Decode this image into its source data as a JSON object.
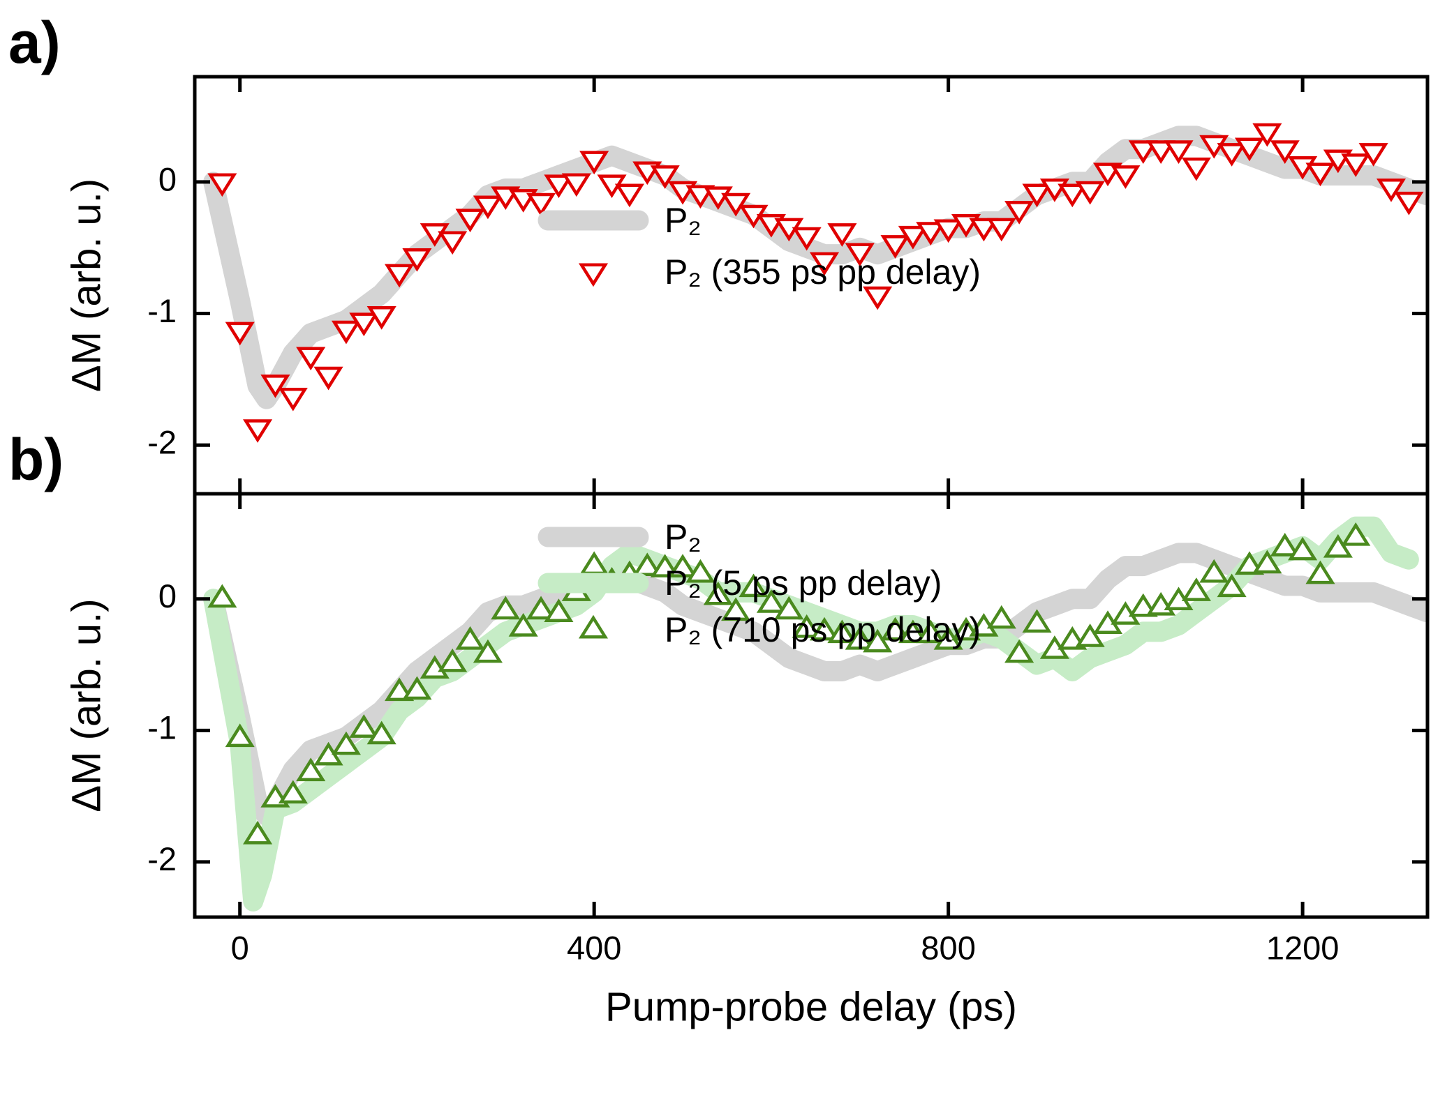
{
  "chart_data": [
    {
      "type": "line",
      "panel_label": "a)",
      "ylabel": "ΔM (arb. u.)",
      "xlim": [
        -51,
        1341
      ],
      "ylim": [
        -2.37,
        0.8
      ],
      "xticks": [
        0,
        400,
        800,
        1200
      ],
      "yticks": [
        -2,
        -1,
        0
      ],
      "series": [
        {
          "name": "P₂",
          "mode": "band",
          "color": "#d4d4d4",
          "x": [
            -30,
            0,
            20,
            30,
            40,
            60,
            80,
            100,
            120,
            140,
            160,
            180,
            200,
            220,
            240,
            260,
            280,
            300,
            320,
            340,
            360,
            380,
            400,
            420,
            440,
            460,
            480,
            500,
            520,
            540,
            560,
            580,
            600,
            620,
            640,
            660,
            680,
            700,
            720,
            740,
            760,
            780,
            800,
            820,
            840,
            860,
            880,
            900,
            920,
            940,
            960,
            980,
            1000,
            1020,
            1040,
            1060,
            1080,
            1100,
            1120,
            1140,
            1160,
            1180,
            1200,
            1220,
            1240,
            1260,
            1280,
            1300,
            1320,
            1340
          ],
          "values": [
            0,
            -0.9,
            -1.55,
            -1.65,
            -1.55,
            -1.3,
            -1.15,
            -1.1,
            -1.05,
            -0.95,
            -0.85,
            -0.7,
            -0.55,
            -0.45,
            -0.35,
            -0.25,
            -0.1,
            -0.05,
            -0.05,
            0,
            0.05,
            0.1,
            0.15,
            0.2,
            0.15,
            0.1,
            0.05,
            -0.05,
            -0.1,
            -0.15,
            -0.2,
            -0.25,
            -0.35,
            -0.45,
            -0.5,
            -0.55,
            -0.55,
            -0.5,
            -0.55,
            -0.5,
            -0.45,
            -0.4,
            -0.35,
            -0.35,
            -0.3,
            -0.3,
            -0.2,
            -0.1,
            -0.05,
            0,
            0,
            0.15,
            0.25,
            0.25,
            0.3,
            0.35,
            0.35,
            0.3,
            0.25,
            0.2,
            0.15,
            0.1,
            0.1,
            0.05,
            0.05,
            0.05,
            0.05,
            0,
            -0.05,
            -0.1
          ]
        },
        {
          "name": "P₂ (355 ps pp delay)",
          "mode": "triangle-down",
          "color": "#e00000",
          "x": [
            -20,
            0,
            20,
            40,
            60,
            80,
            100,
            120,
            140,
            160,
            180,
            200,
            220,
            240,
            260,
            280,
            300,
            320,
            340,
            360,
            380,
            400,
            420,
            440,
            460,
            480,
            500,
            520,
            540,
            560,
            580,
            600,
            620,
            640,
            660,
            680,
            700,
            720,
            740,
            760,
            780,
            800,
            820,
            840,
            860,
            880,
            900,
            920,
            940,
            960,
            980,
            1000,
            1020,
            1040,
            1060,
            1080,
            1100,
            1120,
            1140,
            1160,
            1180,
            1200,
            1220,
            1240,
            1260,
            1280,
            1300,
            1320
          ],
          "values": [
            0,
            -1.13,
            -1.87,
            -1.53,
            -1.63,
            -1.32,
            -1.47,
            -1.12,
            -1.06,
            -1.01,
            -0.69,
            -0.57,
            -0.38,
            -0.44,
            -0.27,
            -0.17,
            -0.1,
            -0.12,
            -0.15,
            -0.01,
            0,
            0.17,
            -0.01,
            -0.08,
            0.09,
            0.06,
            -0.06,
            -0.09,
            -0.1,
            -0.15,
            -0.24,
            -0.31,
            -0.34,
            -0.41,
            -0.6,
            -0.38,
            -0.53,
            -0.86,
            -0.47,
            -0.4,
            -0.37,
            -0.35,
            -0.31,
            -0.34,
            -0.34,
            -0.21,
            -0.08,
            -0.04,
            -0.08,
            -0.06,
            0.08,
            0.06,
            0.25,
            0.25,
            0.25,
            0.12,
            0.29,
            0.23,
            0.27,
            0.38,
            0.25,
            0.13,
            0.08,
            0.18,
            0.15,
            0.23,
            -0.04,
            -0.14
          ]
        }
      ]
    },
    {
      "type": "line",
      "panel_label": "b)",
      "ylabel": "ΔM (arb. u.)",
      "xlabel": "Pump-probe delay (ps)",
      "xlim": [
        -51,
        1341
      ],
      "ylim": [
        -2.42,
        0.8
      ],
      "xticks": [
        0,
        400,
        800,
        1200
      ],
      "yticks": [
        -2,
        -1,
        0
      ],
      "series": [
        {
          "name": "P₂",
          "mode": "band",
          "color": "#d4d4d4",
          "x": [
            -30,
            0,
            20,
            30,
            40,
            60,
            80,
            100,
            120,
            140,
            160,
            180,
            200,
            220,
            240,
            260,
            280,
            300,
            320,
            340,
            360,
            380,
            400,
            420,
            440,
            460,
            480,
            500,
            520,
            540,
            560,
            580,
            600,
            620,
            640,
            660,
            680,
            700,
            720,
            740,
            760,
            780,
            800,
            820,
            840,
            860,
            880,
            900,
            920,
            940,
            960,
            980,
            1000,
            1020,
            1040,
            1060,
            1080,
            1100,
            1120,
            1140,
            1160,
            1180,
            1200,
            1220,
            1240,
            1260,
            1280,
            1300,
            1320,
            1340
          ],
          "values": [
            0,
            -0.9,
            -1.55,
            -1.65,
            -1.55,
            -1.3,
            -1.15,
            -1.1,
            -1.05,
            -0.95,
            -0.85,
            -0.7,
            -0.55,
            -0.45,
            -0.35,
            -0.25,
            -0.1,
            -0.05,
            -0.05,
            0,
            0.05,
            0.1,
            0.15,
            0.2,
            0.15,
            0.1,
            0.05,
            -0.05,
            -0.1,
            -0.15,
            -0.2,
            -0.25,
            -0.35,
            -0.45,
            -0.5,
            -0.55,
            -0.55,
            -0.5,
            -0.55,
            -0.5,
            -0.45,
            -0.4,
            -0.35,
            -0.35,
            -0.3,
            -0.3,
            -0.2,
            -0.1,
            -0.05,
            0,
            0,
            0.15,
            0.25,
            0.25,
            0.3,
            0.35,
            0.35,
            0.3,
            0.25,
            0.2,
            0.15,
            0.1,
            0.1,
            0.05,
            0.05,
            0.05,
            0.05,
            0,
            -0.05,
            -0.1
          ]
        },
        {
          "name": "P₂ (5 ps pp delay)",
          "mode": "band",
          "color": "#c6ecc6",
          "x": [
            -30,
            0,
            15,
            25,
            40,
            60,
            80,
            100,
            120,
            140,
            160,
            180,
            200,
            220,
            240,
            260,
            280,
            300,
            320,
            340,
            360,
            380,
            400,
            420,
            440,
            460,
            480,
            500,
            520,
            540,
            560,
            580,
            600,
            620,
            640,
            660,
            680,
            700,
            720,
            740,
            760,
            780,
            800,
            820,
            840,
            860,
            880,
            900,
            920,
            940,
            960,
            980,
            1000,
            1020,
            1040,
            1060,
            1080,
            1100,
            1120,
            1140,
            1160,
            1180,
            1200,
            1220,
            1240,
            1260,
            1280,
            1300,
            1320
          ],
          "values": [
            0,
            -1.1,
            -2.3,
            -2.1,
            -1.6,
            -1.55,
            -1.45,
            -1.35,
            -1.25,
            -1.15,
            -1.05,
            -0.85,
            -0.75,
            -0.6,
            -0.55,
            -0.45,
            -0.35,
            -0.25,
            -0.2,
            -0.15,
            -0.1,
            -0.05,
            0.05,
            0.25,
            0.35,
            0.3,
            0.25,
            0.2,
            0.15,
            0.05,
            0.05,
            0.05,
            0,
            -0.05,
            -0.1,
            -0.15,
            -0.2,
            -0.25,
            -0.25,
            -0.2,
            -0.2,
            -0.25,
            -0.3,
            -0.3,
            -0.25,
            -0.3,
            -0.4,
            -0.5,
            -0.45,
            -0.55,
            -0.45,
            -0.4,
            -0.35,
            -0.25,
            -0.25,
            -0.2,
            -0.1,
            0,
            0.1,
            0.25,
            0.3,
            0.35,
            0.4,
            0.3,
            0.45,
            0.55,
            0.55,
            0.35,
            0.3
          ]
        },
        {
          "name": "P₂ (710 ps pp delay)",
          "mode": "triangle-up",
          "color": "#4a8a1e",
          "x": [
            -20,
            0,
            20,
            40,
            60,
            80,
            100,
            120,
            140,
            160,
            180,
            200,
            220,
            240,
            260,
            280,
            300,
            320,
            340,
            360,
            380,
            400,
            420,
            440,
            460,
            480,
            500,
            520,
            540,
            560,
            580,
            600,
            620,
            640,
            660,
            680,
            700,
            720,
            740,
            760,
            780,
            800,
            820,
            840,
            860,
            880,
            900,
            920,
            940,
            960,
            980,
            1000,
            1020,
            1040,
            1060,
            1080,
            1100,
            1120,
            1140,
            1160,
            1180,
            1200,
            1220,
            1240,
            1260
          ],
          "values": [
            0,
            -1.06,
            -1.8,
            -1.52,
            -1.49,
            -1.32,
            -1.2,
            -1.12,
            -0.99,
            -1.04,
            -0.71,
            -0.7,
            -0.54,
            -0.49,
            -0.32,
            -0.42,
            -0.09,
            -0.22,
            -0.09,
            -0.11,
            0.05,
            0.25,
            0.13,
            0.18,
            0.24,
            0.23,
            0.23,
            0.19,
            0.02,
            -0.1,
            0.08,
            -0.04,
            -0.09,
            -0.23,
            -0.25,
            -0.27,
            -0.32,
            -0.34,
            -0.25,
            -0.27,
            -0.27,
            -0.32,
            -0.25,
            -0.22,
            -0.16,
            -0.42,
            -0.19,
            -0.39,
            -0.32,
            -0.3,
            -0.2,
            -0.13,
            -0.07,
            -0.06,
            -0.02,
            0.05,
            0.19,
            0.08,
            0.25,
            0.26,
            0.39,
            0.36,
            0.18,
            0.38,
            0.47
          ]
        }
      ]
    }
  ]
}
